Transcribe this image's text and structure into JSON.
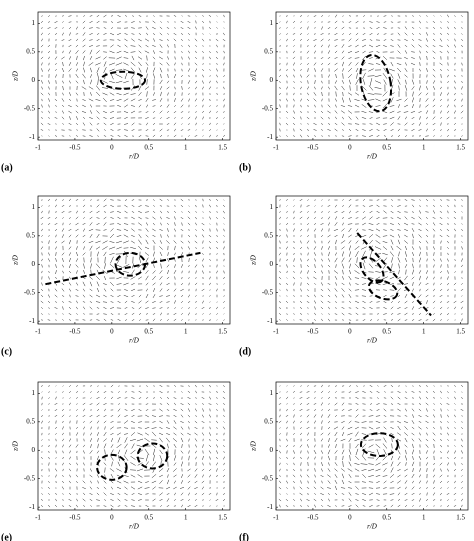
{
  "axes": {
    "xlabel": "r/D",
    "ylabel": "z/D",
    "xticks": [
      -1,
      -0.5,
      0,
      0.5,
      1,
      1.5
    ],
    "yticks": [
      1,
      0.5,
      0,
      -0.5,
      -1
    ]
  },
  "panels": [
    {
      "label": "(a)"
    },
    {
      "label": "(b)"
    },
    {
      "label": "(c)"
    },
    {
      "label": "(d)"
    },
    {
      "label": "(e)"
    },
    {
      "label": "(f)"
    }
  ]
}
